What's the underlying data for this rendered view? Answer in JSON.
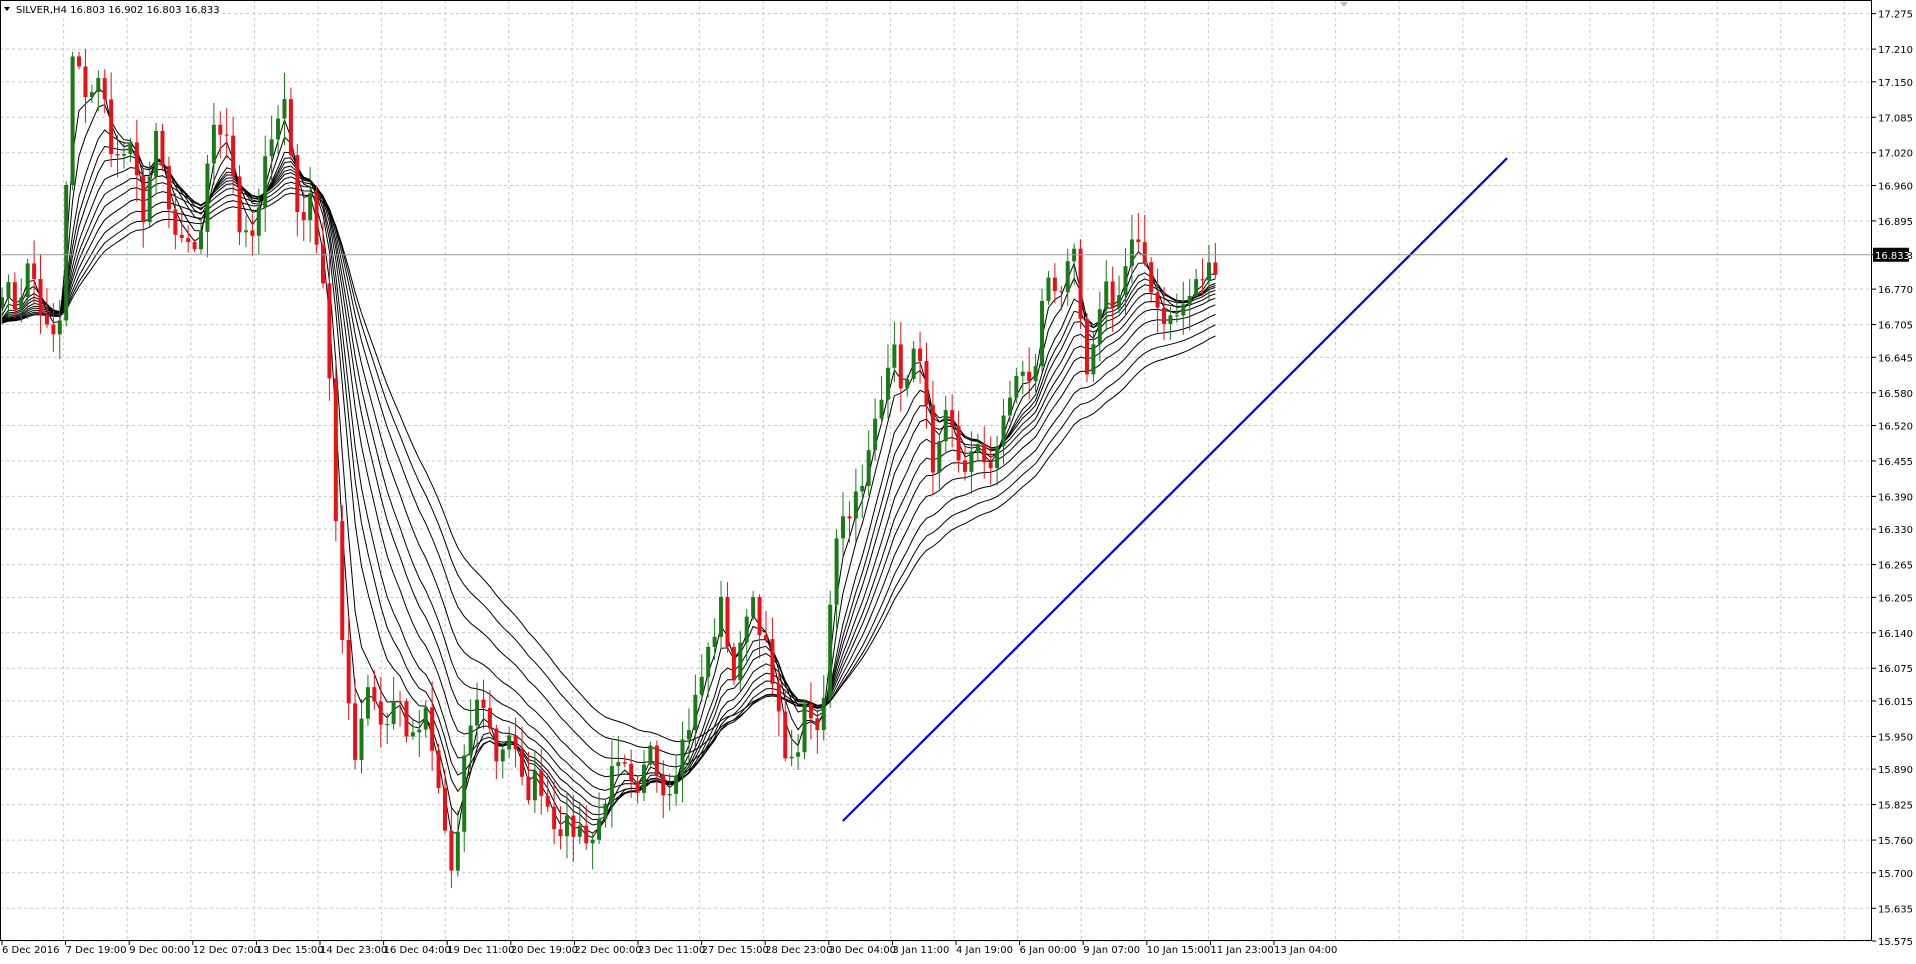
{
  "header": {
    "menu_arrow_icon": "triangle-down-icon",
    "symbol_line": "SILVER,H4  16.803 16.902 16.803 16.833"
  },
  "current_price": "16.833",
  "colors": {
    "bull": "#1a7a1a",
    "bear": "#e8111a",
    "ma": "#000000",
    "trendline": "#0000ee",
    "grid": "#c8c8c8",
    "tag_bg": "#000000"
  },
  "chart_data": {
    "type": "candlestick",
    "symbol": "SILVER",
    "timeframe": "H4",
    "ylim": [
      15.575,
      17.3
    ],
    "y_ticks": [
      "17.275",
      "17.210",
      "17.150",
      "17.085",
      "17.020",
      "16.960",
      "16.895",
      "16.833",
      "16.770",
      "16.705",
      "16.645",
      "16.580",
      "16.520",
      "16.455",
      "16.390",
      "16.330",
      "16.265",
      "16.205",
      "16.140",
      "16.075",
      "16.015",
      "15.950",
      "15.890",
      "15.825",
      "15.760",
      "15.700",
      "15.635",
      "15.575"
    ],
    "x_ticks": [
      "6 Dec 2016",
      "7 Dec 19:00",
      "9 Dec 00:00",
      "12 Dec 07:00",
      "13 Dec 15:00",
      "14 Dec 23:00",
      "16 Dec 04:00",
      "19 Dec 11:00",
      "20 Dec 19:00",
      "22 Dec 00:00",
      "23 Dec 11:00",
      "27 Dec 15:00",
      "28 Dec 23:00",
      "30 Dec 04:00",
      "3 Jan 11:00",
      "4 Jan 19:00",
      "6 Jan 00:00",
      "9 Jan 07:00",
      "10 Jan 15:00",
      "11 Jan 23:00",
      "13 Jan 04:00"
    ],
    "current_price": 16.833,
    "path_points": [
      16.78,
      16.74,
      16.82,
      16.7,
      16.66,
      17.19,
      17.13,
      17.15,
      17.0,
      17.03,
      16.91,
      17.05,
      16.88,
      16.83,
      16.86,
      17.08,
      17.06,
      16.85,
      16.87,
      17.06,
      17.12,
      16.9,
      16.93,
      16.74,
      16.13,
      15.92,
      16.06,
      15.96,
      16.03,
      15.93,
      15.99,
      15.84,
      15.68,
      15.96,
      16.03,
      15.91,
      15.96,
      15.84,
      15.88,
      15.8,
      15.78,
      15.78,
      15.76,
      15.87,
      15.89,
      15.82,
      15.95,
      15.84,
      15.92,
      16.0,
      16.1,
      16.19,
      16.04,
      16.23,
      16.13,
      15.98,
      15.89,
      16.0,
      15.94,
      16.32,
      16.37,
      16.4,
      16.55,
      16.67,
      16.58,
      16.68,
      16.41,
      16.54,
      16.44,
      16.47,
      16.45,
      16.52,
      16.63,
      16.58,
      16.8,
      16.77,
      16.82,
      16.57,
      16.79,
      16.74,
      16.85,
      16.82,
      16.73,
      16.71,
      16.75,
      16.79,
      16.82
    ],
    "trendline": {
      "start": [
        "30 Dec 04:00",
        15.795
      ],
      "end": [
        "13 Jan 04:00",
        17.01
      ],
      "color": "#0000ee"
    },
    "moving_averages": {
      "count": 12,
      "periods": [
        3,
        5,
        8,
        10,
        12,
        15,
        18,
        21,
        25,
        30,
        35,
        40
      ],
      "color": "#000000"
    }
  }
}
